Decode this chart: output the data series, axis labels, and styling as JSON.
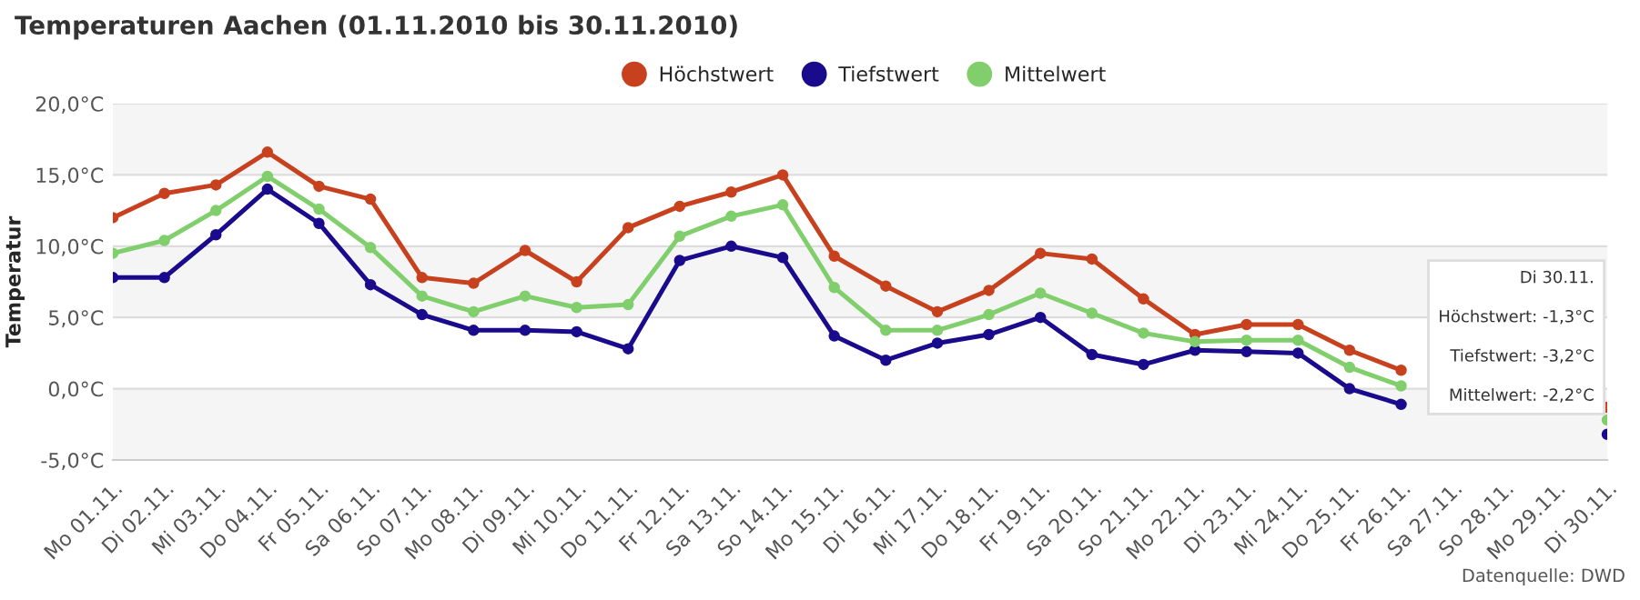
{
  "chart_data": {
    "type": "line",
    "title": "Temperaturen Aachen (01.11.2010 bis 30.11.2010)",
    "ylabel": "Temperatur",
    "categories": [
      "Mo 01.11.",
      "Di 02.11.",
      "Mi 03.11.",
      "Do 04.11.",
      "Fr 05.11.",
      "Sa 06.11.",
      "So 07.11.",
      "Mo 08.11.",
      "Di 09.11.",
      "Mi 10.11.",
      "Do 11.11.",
      "Fr 12.11.",
      "Sa 13.11.",
      "So 14.11.",
      "Mo 15.11.",
      "Di 16.11.",
      "Mi 17.11.",
      "Do 18.11.",
      "Fr 19.11.",
      "Sa 20.11.",
      "So 21.11.",
      "Mo 22.11.",
      "Di 23.11.",
      "Mi 24.11.",
      "Do 25.11.",
      "Fr 26.11.",
      "Sa 27.11.",
      "So 28.11.",
      "Mo 29.11.",
      "Di 30.11."
    ],
    "series": [
      {
        "name": "Höchstwert",
        "color": "#c8411f",
        "values": [
          12.0,
          13.7,
          14.3,
          16.6,
          14.2,
          13.3,
          7.8,
          7.4,
          9.7,
          7.5,
          11.3,
          12.8,
          13.8,
          15.0,
          9.3,
          7.2,
          5.4,
          6.9,
          9.5,
          9.1,
          6.3,
          3.8,
          4.5,
          4.5,
          2.7,
          1.3,
          null,
          null,
          null,
          -1.3
        ]
      },
      {
        "name": "Tiefstwert",
        "color": "#1a0a8c",
        "values": [
          7.8,
          7.8,
          10.8,
          14.0,
          11.6,
          7.3,
          5.2,
          4.1,
          4.1,
          4.0,
          2.8,
          9.0,
          10.0,
          9.2,
          3.7,
          2.0,
          3.2,
          3.8,
          5.0,
          2.4,
          1.7,
          2.7,
          2.6,
          2.5,
          0.0,
          -1.1,
          null,
          null,
          null,
          -3.2
        ]
      },
      {
        "name": "Mittelwert",
        "color": "#80cf6c",
        "values": [
          9.5,
          10.4,
          12.5,
          14.9,
          12.6,
          9.9,
          6.5,
          5.4,
          6.5,
          5.7,
          5.9,
          10.7,
          12.1,
          12.9,
          7.1,
          4.1,
          4.1,
          5.2,
          6.7,
          5.3,
          3.9,
          3.3,
          3.4,
          3.4,
          1.5,
          0.2,
          null,
          null,
          null,
          -2.2
        ]
      }
    ],
    "ylim": [
      -5,
      20
    ],
    "yticks": [
      {
        "value": -5,
        "label": "-5,0°C"
      },
      {
        "value": 0,
        "label": "0,0°C"
      },
      {
        "value": 5,
        "label": "5,0°C"
      },
      {
        "value": 10,
        "label": "10,0°C"
      },
      {
        "value": 15,
        "label": "15,0°C"
      },
      {
        "value": 20,
        "label": "20,0°C"
      }
    ],
    "bands": [
      {
        "axis": "y",
        "from": -5,
        "to": 0,
        "color": "#f5f5f5"
      },
      {
        "axis": "y",
        "from": 5,
        "to": 10,
        "color": "#f5f5f5"
      },
      {
        "axis": "y",
        "from": 15,
        "to": 20,
        "color": "#f5f5f5"
      }
    ],
    "grid": "y",
    "legend": "top",
    "marker": "circle",
    "line_style": "solid",
    "annotations": [
      "Di 30.11.",
      "Höchstwert: -1,3°C",
      "Tiefstwert: -3,2°C",
      "Mittelwert: -2,2°C",
      "Datenquelle: DWD"
    ]
  }
}
